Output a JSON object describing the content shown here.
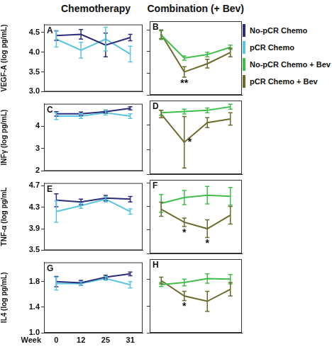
{
  "column_titles": [
    "Chemotherapy",
    "Combination (+ Bev)"
  ],
  "chart_data": [
    {
      "type": "line",
      "title": "A",
      "y_label": "VEGF-A (log pg/mL)",
      "categories": [
        "0",
        "12",
        "25",
        "31"
      ],
      "ylim": [
        3,
        4.7
      ],
      "yticks": [
        {
          "value": 3,
          "label": "3.0"
        },
        3.5,
        {
          "value": 4,
          "label": "4.0"
        },
        4.5
      ],
      "grid": false,
      "tick_labels": "y",
      "series": [
        {
          "name": "No-pCR Chemo",
          "color": "#2b2d7c",
          "values": [
            4.42,
            4.45,
            4.18,
            4.37
          ],
          "errors": [
            0.12,
            0.12,
            0.3,
            0.08
          ]
        },
        {
          "name": "pCR Chemo",
          "color": "#5bc4e0",
          "values": [
            4.33,
            4.05,
            4.33,
            3.95
          ],
          "errors": [
            0.2,
            0.2,
            0.3,
            0.2
          ]
        }
      ]
    },
    {
      "type": "line",
      "title": "B",
      "categories": [
        "0",
        "12",
        "25",
        "31"
      ],
      "ylim": [
        3,
        4.7
      ],
      "yticks": [
        {
          "value": 3,
          "label": "3.0"
        },
        3.5,
        {
          "value": 4,
          "label": "4.0"
        },
        4.5
      ],
      "grid": false,
      "tick_labels": false,
      "series": [
        {
          "name": "No-pCR Chemo + Bev",
          "color": "#3fbf4a",
          "values": [
            4.38,
            3.85,
            3.93,
            4.1
          ],
          "errors": [
            0.1,
            0.05,
            0.05,
            0.05
          ]
        },
        {
          "name": "pCR Chemo + Bev",
          "color": "#6e6a2c",
          "values": [
            4.4,
            3.53,
            3.72,
            3.98
          ],
          "errors": [
            0.1,
            0.12,
            0.1,
            0.1
          ]
        }
      ],
      "annotations": [
        {
          "text": "**",
          "x": "12"
        }
      ]
    },
    {
      "type": "line",
      "title": "C",
      "y_label": "INFγ (log pg/mL)",
      "categories": [
        "0",
        "12",
        "25",
        "31"
      ],
      "ylim": [
        2,
        5
      ],
      "yticks": [
        2,
        3,
        4
      ],
      "grid": false,
      "tick_labels": "y",
      "series": [
        {
          "name": "No-pCR Chemo",
          "color": "#2b2d7c",
          "values": [
            4.55,
            4.55,
            4.65,
            4.8
          ],
          "errors": [
            0.1,
            0.08,
            0.07,
            0.07
          ]
        },
        {
          "name": "pCR Chemo",
          "color": "#5bc4e0",
          "values": [
            4.45,
            4.45,
            4.6,
            4.45
          ],
          "errors": [
            0.15,
            0.1,
            0.1,
            0.1
          ]
        }
      ]
    },
    {
      "type": "line",
      "title": "D",
      "categories": [
        "0",
        "12",
        "25",
        "31"
      ],
      "ylim": [
        2,
        5
      ],
      "yticks": [
        2,
        3,
        4
      ],
      "grid": false,
      "tick_labels": false,
      "series": [
        {
          "name": "No-pCR Chemo + Bev",
          "color": "#3fbf4a",
          "values": [
            4.5,
            4.55,
            4.6,
            4.75
          ],
          "errors": [
            0.1,
            0.1,
            0.1,
            0.1
          ]
        },
        {
          "name": "pCR Chemo + Bev",
          "color": "#6e6a2c",
          "values": [
            4.45,
            3.3,
            4.1,
            4.25
          ],
          "errors": [
            0.15,
            1.05,
            0.2,
            0.25
          ]
        }
      ],
      "annotations": [
        {
          "text": "*",
          "x": "12"
        }
      ]
    },
    {
      "type": "line",
      "title": "E",
      "y_label": "TNF-α (log pg/mL",
      "categories": [
        "0",
        "12",
        "25",
        "31"
      ],
      "ylim": [
        3.5,
        4.75
      ],
      "yticks": [
        3.5,
        3.9,
        4.3,
        4.7
      ],
      "grid": false,
      "tick_labels": "y",
      "series": [
        {
          "name": "No-pCR Chemo",
          "color": "#2b2d7c",
          "values": [
            4.43,
            4.4,
            4.47,
            4.45
          ],
          "errors": [
            0.12,
            0.05,
            0.05,
            0.05
          ]
        },
        {
          "name": "pCR Chemo",
          "color": "#5bc4e0",
          "values": [
            4.22,
            4.33,
            4.45,
            4.22
          ],
          "errors": [
            0.2,
            0.05,
            0.05,
            0.05
          ]
        }
      ]
    },
    {
      "type": "line",
      "title": "F",
      "categories": [
        "0",
        "12",
        "25",
        "31"
      ],
      "ylim": [
        3.5,
        4.75
      ],
      "yticks": [
        3.5,
        3.9,
        4.3,
        4.7
      ],
      "grid": false,
      "tick_labels": false,
      "series": [
        {
          "name": "No-pCR Chemo + Bev",
          "color": "#3fbf4a",
          "values": [
            4.35,
            4.45,
            4.49,
            4.47
          ],
          "errors": [
            0.15,
            0.12,
            0.15,
            0.15
          ]
        },
        {
          "name": "pCR Chemo + Bev",
          "color": "#6e6a2c",
          "values": [
            4.25,
            4.03,
            3.92,
            4.15
          ],
          "errors": [
            0.12,
            0.07,
            0.15,
            0.15
          ]
        }
      ],
      "annotations": [
        {
          "text": "*",
          "x": "12"
        },
        {
          "text": "*",
          "x": "25"
        }
      ]
    },
    {
      "type": "line",
      "title": "G",
      "y_label": "IL4 (log pg/mL)",
      "x_label": "Week",
      "categories": [
        "0",
        "12",
        "25",
        "31"
      ],
      "ylim": [
        1,
        2.1
      ],
      "yticks": [
        {
          "value": 1,
          "label": "1.0"
        },
        1.4,
        1.8
      ],
      "grid": false,
      "tick_labels": true,
      "series": [
        {
          "name": "No-pCR Chemo",
          "color": "#2b2d7c",
          "values": [
            1.8,
            1.78,
            1.87,
            1.92
          ],
          "errors": [
            0.08,
            0.04,
            0.03,
            0.03
          ]
        },
        {
          "name": "pCR Chemo",
          "color": "#5bc4e0",
          "values": [
            1.77,
            1.77,
            1.85,
            1.75
          ],
          "errors": [
            0.1,
            0.03,
            0.03,
            0.05
          ]
        }
      ]
    },
    {
      "type": "line",
      "title": "H",
      "categories": [
        "0",
        "12",
        "25",
        "31"
      ],
      "ylim": [
        1,
        2.1
      ],
      "yticks": [
        {
          "value": 1,
          "label": "1.0"
        },
        1.4,
        1.8
      ],
      "grid": false,
      "tick_labels": false,
      "series": [
        {
          "name": "No-pCR Chemo + Bev",
          "color": "#3fbf4a",
          "values": [
            1.72,
            1.75,
            1.81,
            1.8
          ],
          "errors": [
            0.03,
            0.05,
            0.07,
            0.07
          ]
        },
        {
          "name": "pCR Chemo + Bev",
          "color": "#6e6a2c",
          "values": [
            1.78,
            1.55,
            1.47,
            1.65
          ],
          "errors": [
            0.05,
            0.07,
            0.15,
            0.1
          ]
        }
      ],
      "annotations": [
        {
          "text": "*",
          "x": "12"
        }
      ]
    }
  ]
}
